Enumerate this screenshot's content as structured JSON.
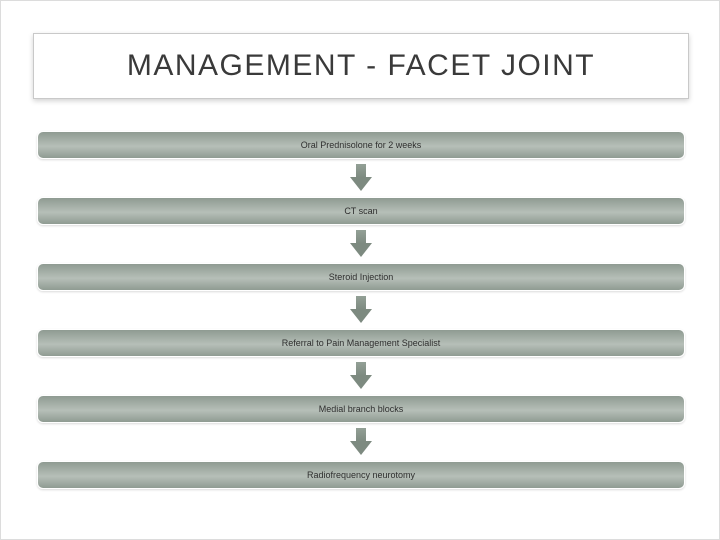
{
  "title": "MANAGEMENT - FACET JOINT",
  "title_fontsize": 30,
  "title_color": "#3a3a3a",
  "title_box": {
    "background": "#ffffff",
    "border_color": "#c9c9c9",
    "shadow": "0 2px 5px rgba(0,0,0,0.18)"
  },
  "background_color": "#ffffff",
  "flow": {
    "type": "flowchart",
    "direction": "vertical",
    "step_width": 648,
    "step_height": 28,
    "step_radius": 6,
    "arrow_gap": 38,
    "step_gradient": {
      "from": "#8f9b92",
      "to": "#b6bfb8"
    },
    "step_border_color": "#ffffff",
    "step_label_color": "#2e2e2e",
    "step_label_fontsize": 9,
    "arrow_gradient": {
      "from": "#93a096",
      "to": "#7d8a80"
    },
    "steps": [
      {
        "label": "Oral Prednisolone for 2 weeks"
      },
      {
        "label": "CT scan"
      },
      {
        "label": "Steroid Injection"
      },
      {
        "label": "Referral to Pain Management Specialist"
      },
      {
        "label": "Medial branch blocks"
      },
      {
        "label": "Radiofrequency neurotomy"
      }
    ]
  }
}
